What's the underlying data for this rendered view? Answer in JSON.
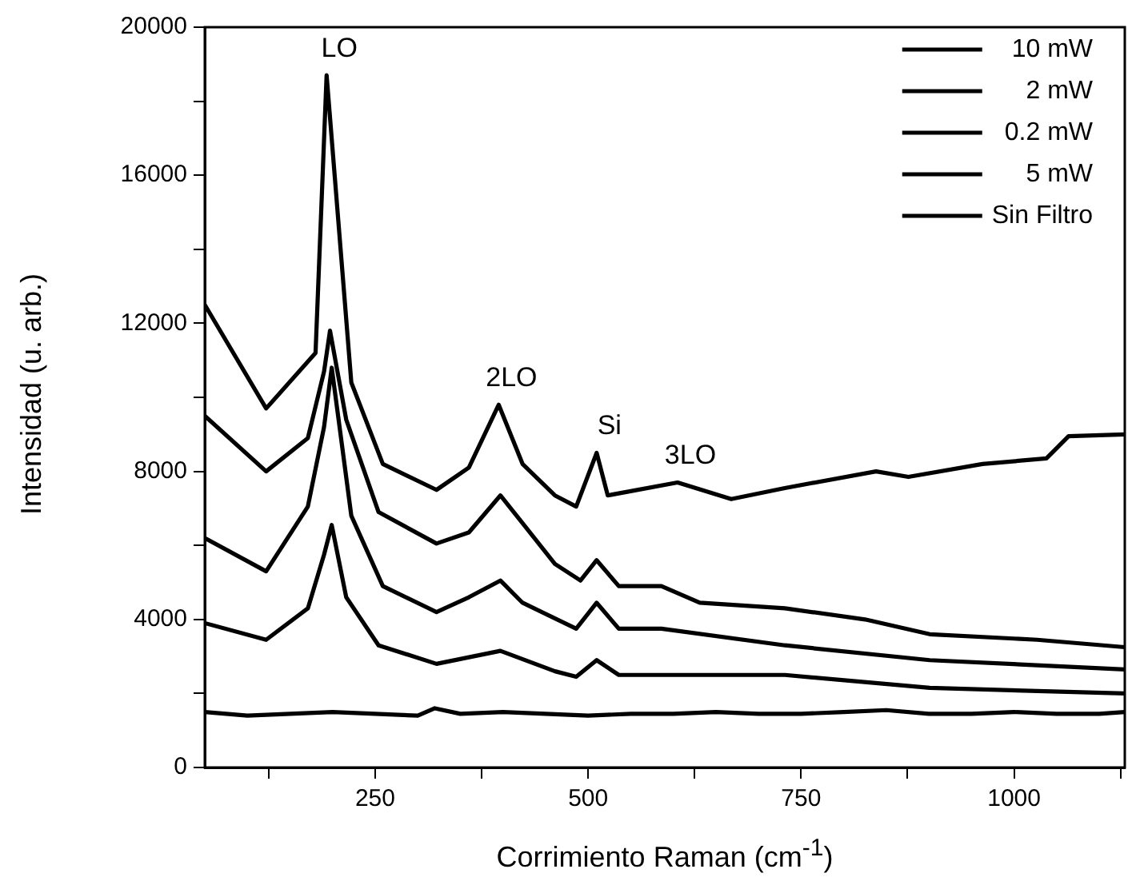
{
  "chart_data": {
    "type": "line",
    "xlabel": "Corrimiento Raman (cm$^{-1}$)",
    "ylabel": "Intensidad (u. arb.)",
    "xlim": [
      50,
      1130
    ],
    "xticks": [
      {
        "value": 125,
        "label": null
      },
      250,
      {
        "value": 375,
        "label": null
      },
      500,
      {
        "value": 625,
        "label": null
      },
      750,
      {
        "value": 875,
        "label": null
      },
      1000,
      {
        "value": 1125,
        "label": null
      }
    ],
    "ylim": [
      0,
      20000
    ],
    "yticks": [
      0,
      {
        "value": 2000,
        "label": null
      },
      4000,
      {
        "value": 6000,
        "label": null
      },
      8000,
      {
        "value": 10000,
        "label": null
      },
      12000,
      {
        "value": 14000,
        "label": null
      },
      16000,
      {
        "value": 18000,
        "label": null
      },
      20000
    ],
    "grid": false,
    "legend": "top right",
    "marker": "none",
    "line_style": "solid",
    "annotations": [
      {
        "text": "LO",
        "x": 193,
        "y": 18700
      },
      {
        "text": "2LO",
        "x": 395,
        "y": 9800
      },
      {
        "text": "Si",
        "x": 510,
        "y": 8500
      },
      {
        "text": "3LO",
        "x": 605,
        "y": 7700
      }
    ],
    "series": [
      {
        "name": "10 mW",
        "color": "#000000",
        "x": [
          50,
          122,
          180,
          193,
          222,
          259,
          322,
          360,
          395,
          423,
          461,
          486,
          510,
          523,
          605,
          668,
          731,
          838,
          876,
          963,
          1038,
          1064,
          1130
        ],
        "values": [
          12500,
          9700,
          11200,
          18700,
          10400,
          8200,
          7500,
          8100,
          9800,
          8200,
          7350,
          7050,
          8500,
          7350,
          7700,
          7250,
          7550,
          8000,
          7850,
          8200,
          8350,
          8950,
          9000
        ]
      },
      {
        "name": "2 mW",
        "color": "#000000",
        "x": [
          50,
          122,
          171,
          190,
          197,
          216,
          254,
          322,
          360,
          397,
          423,
          461,
          491,
          510,
          536,
          586,
          631,
          731,
          825,
          901,
          1027,
          1130
        ],
        "values": [
          9500,
          8000,
          8900,
          10700,
          11800,
          9400,
          6900,
          6050,
          6350,
          7350,
          6600,
          5500,
          5050,
          5600,
          4900,
          4900,
          4450,
          4300,
          4000,
          3600,
          3450,
          3250
        ]
      },
      {
        "name": "0.2 mW",
        "color": "#000000",
        "x": [
          50,
          122,
          171,
          190,
          199,
          222,
          259,
          322,
          360,
          397,
          423,
          486,
          510,
          536,
          586,
          731,
          901,
          1130
        ],
        "values": [
          6200,
          5300,
          7050,
          9200,
          10800,
          6800,
          4900,
          4200,
          4600,
          5050,
          4450,
          3750,
          4450,
          3750,
          3750,
          3300,
          2900,
          2650
        ]
      },
      {
        "name": "5 mW",
        "color": "#000000",
        "x": [
          50,
          122,
          171,
          190,
          199,
          216,
          254,
          322,
          397,
          461,
          486,
          510,
          536,
          731,
          901,
          1130
        ],
        "values": [
          3900,
          3450,
          4300,
          5750,
          6550,
          4600,
          3300,
          2800,
          3150,
          2600,
          2450,
          2900,
          2500,
          2500,
          2150,
          2000
        ]
      },
      {
        "name": "Sin Filtro",
        "color": "#000000",
        "x": [
          50,
          100,
          150,
          200,
          250,
          300,
          320,
          350,
          400,
          450,
          500,
          550,
          600,
          650,
          700,
          750,
          800,
          850,
          900,
          950,
          1000,
          1050,
          1100,
          1130
        ],
        "values": [
          1500,
          1400,
          1450,
          1500,
          1450,
          1400,
          1600,
          1450,
          1500,
          1450,
          1400,
          1450,
          1450,
          1500,
          1450,
          1450,
          1500,
          1550,
          1450,
          1450,
          1500,
          1450,
          1450,
          1500
        ]
      }
    ]
  }
}
